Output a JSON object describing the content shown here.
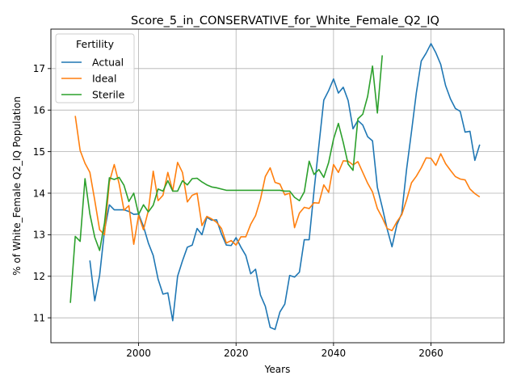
{
  "chart_data": {
    "type": "line",
    "title": "Score_5_in_CONSERVATIVE_for_White_Female_Q2_IQ",
    "xlabel": "Years",
    "ylabel": "% of White_Female Q2_IQ Population",
    "xlim": [
      1982,
      2075
    ],
    "ylim": [
      10.4,
      17.95
    ],
    "xticks": [
      2000,
      2020,
      2040,
      2060
    ],
    "yticks": [
      11,
      12,
      13,
      14,
      15,
      16,
      17
    ],
    "grid": true,
    "legend": {
      "title": "Fertility",
      "placement": "top-left"
    },
    "series": [
      {
        "name": "Actual",
        "color": "#1f77b4",
        "x": [
          1990,
          1991,
          1992,
          1993,
          1994,
          1995,
          1996,
          1997,
          1998,
          1999,
          2000,
          2001,
          2002,
          2003,
          2004,
          2005,
          2006,
          2007,
          2008,
          2009,
          2010,
          2011,
          2012,
          2013,
          2014,
          2015,
          2016,
          2017,
          2018,
          2019,
          2020,
          2021,
          2022,
          2023,
          2024,
          2025,
          2026,
          2027,
          2028,
          2029,
          2030,
          2031,
          2032,
          2033,
          2034,
          2035,
          2036,
          2037,
          2038,
          2039,
          2040,
          2041,
          2042,
          2043,
          2044,
          2045,
          2046,
          2047,
          2048,
          2049,
          2050,
          2051,
          2052,
          2053,
          2054,
          2055,
          2056,
          2057,
          2058,
          2059,
          2060,
          2061,
          2062,
          2063,
          2064,
          2065,
          2066,
          2067,
          2068,
          2069,
          2070
        ],
        "values": [
          12.38,
          11.41,
          12.02,
          13.1,
          13.72,
          13.6,
          13.6,
          13.6,
          13.56,
          13.49,
          13.5,
          13.2,
          12.8,
          12.5,
          11.93,
          11.57,
          11.6,
          10.93,
          12.0,
          12.37,
          12.7,
          12.75,
          13.15,
          13.0,
          13.42,
          13.35,
          13.36,
          13.02,
          12.75,
          12.74,
          12.93,
          12.7,
          12.5,
          12.06,
          12.17,
          11.55,
          11.28,
          10.77,
          10.72,
          11.14,
          11.33,
          12.02,
          11.98,
          12.1,
          12.88,
          12.88,
          14.06,
          15.15,
          16.24,
          16.47,
          16.75,
          16.41,
          16.55,
          16.23,
          15.55,
          15.75,
          15.64,
          15.36,
          15.26,
          14.14,
          13.66,
          13.14,
          12.71,
          13.24,
          13.51,
          14.58,
          15.48,
          16.42,
          17.18,
          17.37,
          17.6,
          17.38,
          17.1,
          16.59,
          16.27,
          16.04,
          15.97,
          15.47,
          15.49,
          14.79,
          15.17
        ]
      },
      {
        "name": "Ideal",
        "color": "#ff7f0e",
        "x": [
          1987,
          1988,
          1989,
          1990,
          1991,
          1992,
          1993,
          1994,
          1995,
          1996,
          1997,
          1998,
          1999,
          2000,
          2001,
          2002,
          2003,
          2004,
          2005,
          2006,
          2007,
          2008,
          2009,
          2010,
          2011,
          2012,
          2013,
          2014,
          2015,
          2016,
          2017,
          2018,
          2019,
          2020,
          2021,
          2022,
          2023,
          2024,
          2025,
          2026,
          2027,
          2028,
          2029,
          2030,
          2031,
          2032,
          2033,
          2034,
          2035,
          2036,
          2037,
          2038,
          2039,
          2040,
          2041,
          2042,
          2043,
          2044,
          2045,
          2046,
          2047,
          2048,
          2049,
          2050,
          2051,
          2052,
          2053,
          2054,
          2055,
          2056,
          2057,
          2058,
          2059,
          2060,
          2061,
          2062,
          2063,
          2064,
          2065,
          2066,
          2067,
          2068,
          2069,
          2070
        ],
        "values": [
          15.86,
          15.03,
          14.72,
          14.5,
          13.83,
          13.12,
          13.0,
          14.27,
          14.69,
          14.23,
          13.59,
          13.7,
          12.77,
          13.47,
          13.12,
          13.58,
          14.53,
          13.82,
          13.95,
          14.5,
          14.05,
          14.74,
          14.5,
          13.79,
          13.95,
          14.0,
          13.22,
          13.44,
          13.38,
          13.3,
          13.15,
          12.8,
          12.86,
          12.75,
          12.95,
          12.95,
          13.25,
          13.46,
          13.85,
          14.4,
          14.61,
          14.26,
          14.22,
          13.96,
          14.0,
          13.17,
          13.52,
          13.66,
          13.63,
          13.77,
          13.76,
          14.2,
          14.02,
          14.69,
          14.5,
          14.78,
          14.77,
          14.68,
          14.76,
          14.5,
          14.24,
          14.03,
          13.63,
          13.41,
          13.15,
          13.1,
          13.31,
          13.48,
          13.84,
          14.25,
          14.41,
          14.61,
          14.85,
          14.84,
          14.67,
          14.95,
          14.71,
          14.55,
          14.4,
          14.34,
          14.32,
          14.1,
          13.99,
          13.91
        ]
      },
      {
        "name": "Sterile",
        "color": "#2ca02c",
        "x": [
          1986,
          1987,
          1988,
          1989,
          1990,
          1991,
          1992,
          1993,
          1994,
          1995,
          1996,
          1997,
          1998,
          1999,
          2000,
          2001,
          2002,
          2003,
          2004,
          2005,
          2006,
          2007,
          2008,
          2009,
          2010,
          2011,
          2012,
          2013,
          2014,
          2015,
          2016,
          2017,
          2018,
          2019,
          2020,
          2021,
          2022,
          2023,
          2024,
          2025,
          2026,
          2027,
          2028,
          2029,
          2030,
          2031,
          2032,
          2033,
          2034,
          2035,
          2036,
          2037,
          2038,
          2039,
          2040,
          2041,
          2042,
          2043,
          2044,
          2045,
          2046,
          2047,
          2048,
          2049,
          2050
        ],
        "values": [
          11.36,
          12.96,
          12.84,
          14.35,
          13.5,
          12.94,
          12.62,
          13.28,
          14.37,
          14.33,
          14.38,
          14.19,
          13.8,
          14.0,
          13.49,
          13.72,
          13.55,
          13.71,
          14.1,
          14.05,
          14.3,
          14.05,
          14.05,
          14.3,
          14.2,
          14.35,
          14.36,
          14.27,
          14.2,
          14.15,
          14.13,
          14.1,
          14.07,
          14.07,
          14.07,
          14.07,
          14.07,
          14.07,
          14.07,
          14.07,
          14.07,
          14.07,
          14.07,
          14.07,
          14.05,
          14.05,
          13.9,
          13.82,
          14.03,
          14.77,
          14.45,
          14.57,
          14.38,
          14.74,
          15.3,
          15.68,
          15.22,
          14.7,
          14.55,
          15.79,
          15.9,
          16.33,
          17.06,
          15.93,
          17.32
        ]
      }
    ]
  }
}
